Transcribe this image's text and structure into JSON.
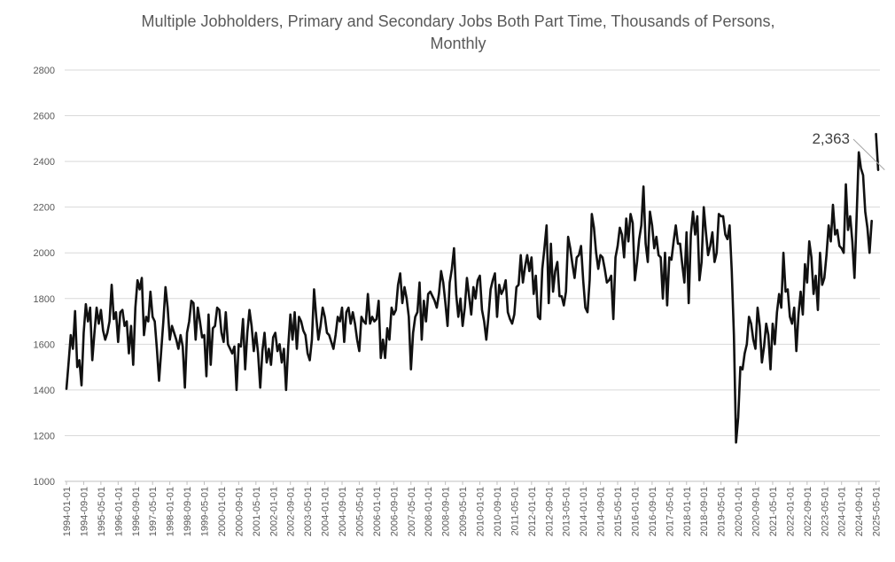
{
  "chart_data": {
    "type": "line",
    "title_lines": [
      "Multiple Jobholders, Primary and Secondary Jobs Both Part Time, Thousands of Persons,",
      "Monthly"
    ],
    "xlabel": "",
    "ylabel": "",
    "ylim": [
      1000,
      2800
    ],
    "yticks": [
      "1000",
      "1200",
      "1400",
      "1600",
      "1800",
      "2000",
      "2200",
      "2400",
      "2600",
      "2800"
    ],
    "xticks": [
      "1994-01-01",
      "1994-09-01",
      "1995-05-01",
      "1996-01-01",
      "1996-09-01",
      "1997-05-01",
      "1998-01-01",
      "1998-09-01",
      "1999-05-01",
      "2000-01-01",
      "2000-09-01",
      "2001-05-01",
      "2002-01-01",
      "2002-09-01",
      "2003-05-01",
      "2004-01-01",
      "2004-09-01",
      "2005-05-01",
      "2006-01-01",
      "2006-09-01",
      "2007-05-01",
      "2008-01-01",
      "2008-09-01",
      "2009-05-01",
      "2010-01-01",
      "2010-09-01",
      "2011-05-01",
      "2012-01-01",
      "2012-09-01",
      "2013-05-01",
      "2014-01-01",
      "2014-09-01",
      "2015-05-01",
      "2016-01-01",
      "2016-09-01",
      "2017-05-01",
      "2018-01-01",
      "2018-09-01",
      "2019-05-01",
      "2020-01-01",
      "2020-09-01",
      "2021-05-01",
      "2022-01-01",
      "2022-09-01",
      "2023-05-01",
      "2024-01-01",
      "2024-09-01",
      "2025-05-01"
    ],
    "grid": true,
    "legend": "none",
    "series": [
      {
        "name": "Multiple Jobholders, Primary and Secondary Jobs Both Part Time",
        "start": "1994-01-01",
        "frequency": "monthly",
        "values": [
          1405,
          1520,
          1640,
          1580,
          1745,
          1500,
          1530,
          1420,
          1650,
          1775,
          1700,
          1760,
          1530,
          1650,
          1760,
          1690,
          1750,
          1660,
          1620,
          1650,
          1700,
          1860,
          1710,
          1740,
          1610,
          1740,
          1750,
          1680,
          1700,
          1560,
          1680,
          1510,
          1760,
          1880,
          1840,
          1890,
          1640,
          1720,
          1700,
          1830,
          1720,
          1700,
          1580,
          1440,
          1570,
          1700,
          1850,
          1760,
          1620,
          1680,
          1650,
          1620,
          1580,
          1640,
          1590,
          1410,
          1650,
          1700,
          1790,
          1780,
          1620,
          1760,
          1700,
          1630,
          1640,
          1460,
          1730,
          1510,
          1670,
          1680,
          1760,
          1750,
          1650,
          1610,
          1740,
          1600,
          1580,
          1560,
          1590,
          1400,
          1600,
          1590,
          1710,
          1490,
          1650,
          1750,
          1680,
          1570,
          1650,
          1560,
          1410,
          1570,
          1650,
          1520,
          1580,
          1510,
          1630,
          1650,
          1570,
          1600,
          1520,
          1580,
          1400,
          1590,
          1730,
          1620,
          1740,
          1580,
          1720,
          1700,
          1660,
          1640,
          1560,
          1530,
          1620,
          1840,
          1720,
          1620,
          1680,
          1760,
          1720,
          1650,
          1640,
          1610,
          1580,
          1640,
          1720,
          1700,
          1760,
          1610,
          1740,
          1760,
          1690,
          1740,
          1690,
          1620,
          1570,
          1720,
          1700,
          1690,
          1820,
          1690,
          1720,
          1700,
          1710,
          1790,
          1540,
          1620,
          1540,
          1670,
          1620,
          1760,
          1730,
          1750,
          1860,
          1910,
          1780,
          1850,
          1800,
          1720,
          1490,
          1650,
          1720,
          1740,
          1870,
          1620,
          1790,
          1700,
          1820,
          1830,
          1810,
          1790,
          1760,
          1820,
          1920,
          1870,
          1780,
          1680,
          1870,
          1930,
          2020,
          1820,
          1720,
          1800,
          1680,
          1760,
          1890,
          1810,
          1730,
          1850,
          1800,
          1880,
          1900,
          1750,
          1700,
          1620,
          1720,
          1840,
          1880,
          1910,
          1720,
          1860,
          1820,
          1840,
          1880,
          1740,
          1710,
          1690,
          1730,
          1850,
          1860,
          1990,
          1870,
          1940,
          1990,
          1920,
          1980,
          1820,
          1900,
          1720,
          1710,
          1930,
          2020,
          2120,
          1780,
          2040,
          1830,
          1920,
          1960,
          1810,
          1810,
          1770,
          1830,
          2070,
          2020,
          1950,
          1890,
          1980,
          1990,
          2030,
          1880,
          1760,
          1740,
          1880,
          2170,
          2110,
          2000,
          1930,
          1990,
          1980,
          1930,
          1870,
          1880,
          1900,
          1710,
          1980,
          2030,
          2110,
          2080,
          1980,
          2150,
          2050,
          2170,
          2130,
          1880,
          1960,
          2060,
          2120,
          2290,
          2040,
          1960,
          2180,
          2120,
          2020,
          2070,
          1990,
          1980,
          1800,
          2000,
          1770,
          1980,
          1970,
          2050,
          2120,
          2040,
          2040,
          1950,
          1870,
          2090,
          1780,
          2080,
          2180,
          2080,
          2160,
          1880,
          1960,
          2200,
          2090,
          1990,
          2030,
          2090,
          1960,
          2000,
          2170,
          2160,
          2160,
          2080,
          2060,
          2120,
          1920,
          1640,
          1170,
          1280,
          1500,
          1490,
          1560,
          1600,
          1720,
          1690,
          1620,
          1580,
          1760,
          1680,
          1520,
          1590,
          1690,
          1640,
          1490,
          1690,
          1600,
          1740,
          1820,
          1760,
          2000,
          1830,
          1840,
          1720,
          1690,
          1760,
          1570,
          1730,
          1830,
          1730,
          1950,
          1870,
          2050,
          1980,
          1820,
          1900,
          1750,
          2000,
          1860,
          1890,
          1990,
          2120,
          2050,
          2210,
          2080,
          2100,
          2030,
          2020,
          2000,
          2300,
          2100,
          2160,
          2050,
          1890,
          2160,
          2440,
          2370,
          2340,
          2180,
          2110,
          2000,
          2140,
          null,
          2520,
          2363
        ]
      }
    ],
    "annotation": {
      "label": "2,363",
      "value": 2363,
      "date": "2025-09-01"
    }
  }
}
